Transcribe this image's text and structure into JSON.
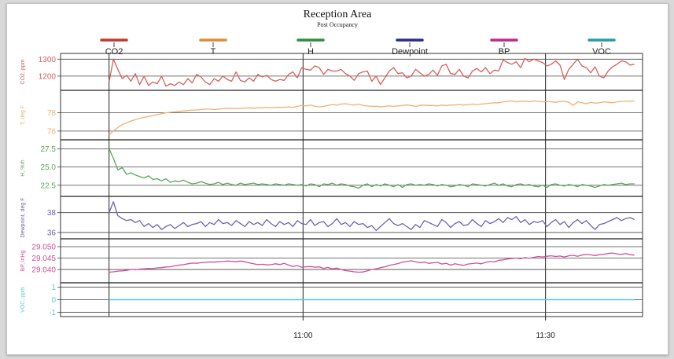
{
  "chart_data": {
    "type": "line",
    "title": "Reception Area",
    "subtitle": "Post Occupancy",
    "x": {
      "tick_labels": [
        "11:00",
        "11:30"
      ],
      "tick_minutes": [
        60,
        90
      ],
      "range_minutes": [
        30,
        102
      ],
      "data_start_minute": 36,
      "data_end_minute": 101
    },
    "legend": [
      {
        "label": "CO2",
        "color": "#c0392b"
      },
      {
        "label": "T",
        "color": "#e08a3a"
      },
      {
        "label": "H",
        "color": "#2e8b3d"
      },
      {
        "label": "Dewpoint",
        "color": "#2c2c8c"
      },
      {
        "label": "BP",
        "color": "#c0288c"
      },
      {
        "label": "VOC",
        "color": "#2a9aa8"
      }
    ],
    "series": [
      {
        "name": "CO2",
        "ylabel": "CO2, ppm",
        "color": "#d6605a",
        "ylim": [
          1130,
          1320
        ],
        "ticks": [
          1200,
          1300
        ],
        "values": [
          1165,
          1300,
          1240,
          1185,
          1205,
          1170,
          1215,
          1150,
          1200,
          1145,
          1165,
          1155,
          1200,
          1140,
          1155,
          1145,
          1165,
          1150,
          1185,
          1160,
          1210,
          1195,
          1165,
          1150,
          1185,
          1170,
          1200,
          1180,
          1170,
          1225,
          1175,
          1165,
          1190,
          1170,
          1210,
          1195,
          1205,
          1180,
          1170,
          1180,
          1175,
          1210,
          1225,
          1190,
          1250,
          1240,
          1235,
          1260,
          1250,
          1210,
          1240,
          1230,
          1230,
          1240,
          1215,
          1200,
          1175,
          1215,
          1225,
          1230,
          1170,
          1200,
          1150,
          1190,
          1230,
          1250,
          1215,
          1220,
          1190,
          1200,
          1240,
          1220,
          1200,
          1210,
          1235,
          1205,
          1260,
          1270,
          1215,
          1210,
          1240,
          1200,
          1190,
          1230,
          1245,
          1225,
          1250,
          1215,
          1235,
          1230,
          1295,
          1280,
          1270,
          1285,
          1250,
          1305,
          1285,
          1300,
          1290,
          1280,
          1260,
          1270,
          1290,
          1265,
          1180,
          1240,
          1270,
          1300,
          1260,
          1250,
          1220,
          1255,
          1200,
          1190,
          1230,
          1255,
          1270,
          1290,
          1285,
          1265,
          1270
        ]
      },
      {
        "name": "T",
        "ylabel": "T, deg F",
        "color": "#f0b070",
        "ylim": [
          75.3,
          80.2
        ],
        "ticks": [
          76,
          78
        ],
        "values": [
          75.6,
          76.0,
          76.4,
          76.7,
          76.9,
          77.1,
          77.25,
          77.4,
          77.5,
          77.6,
          77.7,
          77.8,
          77.9,
          78.0,
          78.05,
          78.1,
          78.15,
          78.2,
          78.25,
          78.3,
          78.3,
          78.35,
          78.4,
          78.4,
          78.35,
          78.4,
          78.45,
          78.5,
          78.5,
          78.45,
          78.5,
          78.5,
          78.55,
          78.5,
          78.55,
          78.55,
          78.6,
          78.55,
          78.6,
          78.6,
          78.6,
          78.65,
          78.6,
          78.7,
          78.8,
          78.75,
          78.85,
          78.7,
          78.65,
          78.7,
          78.8,
          78.9,
          78.85,
          78.95,
          79.0,
          78.9,
          78.85,
          78.95,
          78.8,
          78.75,
          78.7,
          78.7,
          78.65,
          78.7,
          78.75,
          78.7,
          78.75,
          78.8,
          78.85,
          78.8,
          78.7,
          78.8,
          78.85,
          78.8,
          78.8,
          78.75,
          78.85,
          78.8,
          78.85,
          78.85,
          78.9,
          78.85,
          78.9,
          78.95,
          78.9,
          78.95,
          79.0,
          79.05,
          79.1,
          79.1,
          79.2,
          79.25,
          79.3,
          79.2,
          79.25,
          79.3,
          79.2,
          79.3,
          79.25,
          79.2,
          79.25,
          79.2,
          79.15,
          79.25,
          79.25,
          79.15,
          78.8,
          79.2,
          79.1,
          79.0,
          79.15,
          79.05,
          79.1,
          79.2,
          79.15,
          79.1,
          79.2,
          79.25,
          79.3,
          79.25,
          79.3
        ]
      },
      {
        "name": "H",
        "ylabel": "H, %rh",
        "color": "#5aa85a",
        "ylim": [
          21.3,
          28.4
        ],
        "ticks": [
          22.5,
          25.0,
          27.5
        ],
        "values": [
          27.5,
          26.2,
          24.6,
          24.9,
          24.0,
          24.2,
          23.9,
          23.7,
          23.5,
          23.8,
          23.3,
          23.4,
          23.1,
          23.4,
          22.9,
          23.1,
          23.0,
          23.2,
          22.9,
          22.7,
          22.8,
          23.0,
          22.8,
          22.6,
          22.7,
          22.9,
          22.6,
          22.8,
          22.6,
          22.5,
          22.8,
          22.6,
          22.7,
          22.8,
          22.6,
          22.7,
          22.6,
          22.5,
          22.7,
          22.6,
          22.5,
          22.7,
          22.6,
          22.5,
          22.6,
          22.4,
          22.7,
          22.6,
          22.3,
          22.7,
          22.6,
          22.8,
          22.5,
          22.7,
          22.6,
          22.4,
          22.3,
          22.1,
          22.5,
          22.7,
          22.3,
          22.6,
          22.4,
          22.7,
          22.5,
          22.3,
          22.6,
          22.2,
          22.6,
          22.7,
          22.5,
          22.6,
          22.5,
          22.7,
          22.6,
          22.4,
          22.6,
          22.5,
          22.3,
          22.4,
          22.6,
          22.5,
          22.3,
          22.7,
          22.6,
          22.5,
          22.4,
          22.6,
          22.8,
          22.5,
          22.7,
          22.4,
          22.3,
          22.6,
          22.7,
          22.5,
          22.6,
          22.4,
          22.3,
          22.5,
          22.2,
          22.6,
          22.7,
          22.5,
          22.4,
          22.6,
          22.5,
          22.3,
          22.6,
          22.5,
          22.4,
          22.2,
          22.4,
          22.6,
          22.5,
          22.6,
          22.7,
          22.8,
          22.6,
          22.7,
          22.7
        ]
      },
      {
        "name": "Dewpoint",
        "ylabel": "Dewpoint, deg F",
        "color": "#7060b0",
        "ylim": [
          35.6,
          39.4
        ],
        "ticks": [
          36,
          38
        ],
        "values": [
          38.0,
          39.1,
          37.7,
          37.4,
          37.2,
          37.3,
          37.0,
          37.2,
          36.6,
          36.9,
          36.5,
          36.8,
          36.3,
          36.6,
          36.8,
          36.4,
          36.7,
          37.0,
          36.6,
          36.8,
          36.9,
          37.1,
          36.6,
          37.0,
          36.8,
          37.3,
          36.9,
          37.0,
          36.7,
          37.2,
          36.9,
          36.6,
          37.1,
          36.8,
          37.0,
          36.7,
          37.3,
          36.9,
          36.6,
          37.1,
          36.8,
          37.0,
          36.6,
          37.2,
          36.9,
          36.8,
          37.3,
          36.7,
          37.0,
          37.1,
          36.6,
          36.9,
          37.4,
          36.8,
          37.0,
          36.6,
          37.1,
          36.8,
          36.9,
          36.5,
          36.7,
          36.2,
          36.6,
          37.0,
          37.4,
          36.9,
          36.7,
          36.9,
          36.6,
          36.3,
          36.8,
          36.5,
          37.2,
          37.0,
          36.8,
          36.6,
          37.3,
          37.0,
          36.5,
          36.9,
          37.1,
          36.7,
          36.8,
          37.3,
          36.9,
          36.6,
          37.2,
          36.9,
          37.1,
          37.4,
          37.0,
          37.5,
          37.3,
          37.6,
          37.0,
          37.3,
          36.8,
          37.1,
          37.0,
          37.2,
          36.6,
          37.0,
          37.3,
          36.8,
          37.1,
          36.5,
          37.0,
          37.3,
          36.9,
          37.2,
          36.7,
          36.3,
          36.8,
          36.9,
          37.1,
          37.3,
          37.5,
          37.2,
          37.4,
          37.5,
          37.3
        ]
      },
      {
        "name": "BP",
        "ylabel": "BP, inHg",
        "color": "#d05098",
        "ylim": [
          29.0352,
          29.0524
        ],
        "ticks": [
          29.04,
          29.045,
          29.05
        ],
        "values": [
          29.0388,
          29.039,
          29.0393,
          29.0394,
          29.0396,
          29.04,
          29.0399,
          29.0402,
          29.0403,
          29.0405,
          29.0404,
          29.0407,
          29.0408,
          29.0411,
          29.0412,
          29.0416,
          29.0419,
          29.0421,
          29.0425,
          29.0428,
          29.0427,
          29.043,
          29.0431,
          29.0433,
          29.0432,
          29.0434,
          29.0435,
          29.0437,
          29.0436,
          29.0434,
          29.0437,
          29.0434,
          29.0429,
          29.0425,
          29.0421,
          29.0423,
          29.042,
          29.0421,
          29.0425,
          29.0422,
          29.0427,
          29.0419,
          29.0413,
          29.0417,
          29.041,
          29.0412,
          29.0413,
          29.041,
          29.0411,
          29.0405,
          29.0409,
          29.0403,
          29.0406,
          29.04,
          29.0395,
          29.0393,
          29.039,
          29.0388,
          29.0389,
          29.0394,
          29.04,
          29.0403,
          29.0408,
          29.0412,
          29.0418,
          29.0422,
          29.0426,
          29.0432,
          29.0435,
          29.0438,
          29.0434,
          29.043,
          29.0433,
          29.0427,
          29.0429,
          29.0431,
          29.0424,
          29.0427,
          29.0419,
          29.0425,
          29.0421,
          29.0418,
          29.0424,
          29.0426,
          29.0428,
          29.0425,
          29.0431,
          29.0435,
          29.0433,
          29.044,
          29.0442,
          29.0446,
          29.0448,
          29.045,
          29.0447,
          29.0452,
          29.0449,
          29.0453,
          29.0457,
          29.0455,
          29.0458,
          29.046,
          29.0457,
          29.0459,
          29.0455,
          29.046,
          29.0462,
          29.0458,
          29.0463,
          29.0466,
          29.0464,
          29.0461,
          29.0465,
          29.0467,
          29.047,
          29.0472,
          29.0468,
          29.0466,
          29.047,
          29.0465,
          29.0463
        ]
      },
      {
        "name": "VOC",
        "ylabel": "VOC, ppm",
        "color": "#5ac8dc",
        "ylim": [
          -1.15,
          1.15
        ],
        "ticks": [
          -1,
          0,
          1
        ],
        "values": [
          0,
          0,
          0,
          0,
          0,
          0,
          0,
          0,
          0,
          0,
          0,
          0,
          0,
          0,
          0,
          0,
          0,
          0,
          0,
          0,
          0,
          0,
          0,
          0,
          0,
          0,
          0,
          0,
          0,
          0,
          0,
          0,
          0,
          0,
          0,
          0,
          0,
          0,
          0,
          0,
          0,
          0,
          0,
          0,
          0,
          0,
          0,
          0,
          0,
          0,
          0,
          0,
          0,
          0,
          0,
          0,
          0,
          0,
          0,
          0,
          0,
          0,
          0,
          0,
          0,
          0,
          0,
          0,
          0,
          0,
          0,
          0,
          0,
          0,
          0,
          0,
          0,
          0,
          0,
          0,
          0,
          0,
          0,
          0,
          0,
          0,
          0,
          0,
          0,
          0,
          0,
          0,
          0,
          0,
          0,
          0,
          0,
          0,
          0,
          0,
          0,
          0,
          0,
          0,
          0,
          0,
          0,
          0,
          0,
          0,
          0,
          0,
          0,
          0,
          0,
          0,
          0,
          0,
          0,
          0,
          0
        ]
      }
    ],
    "grid": true,
    "legend_placement": "top"
  }
}
